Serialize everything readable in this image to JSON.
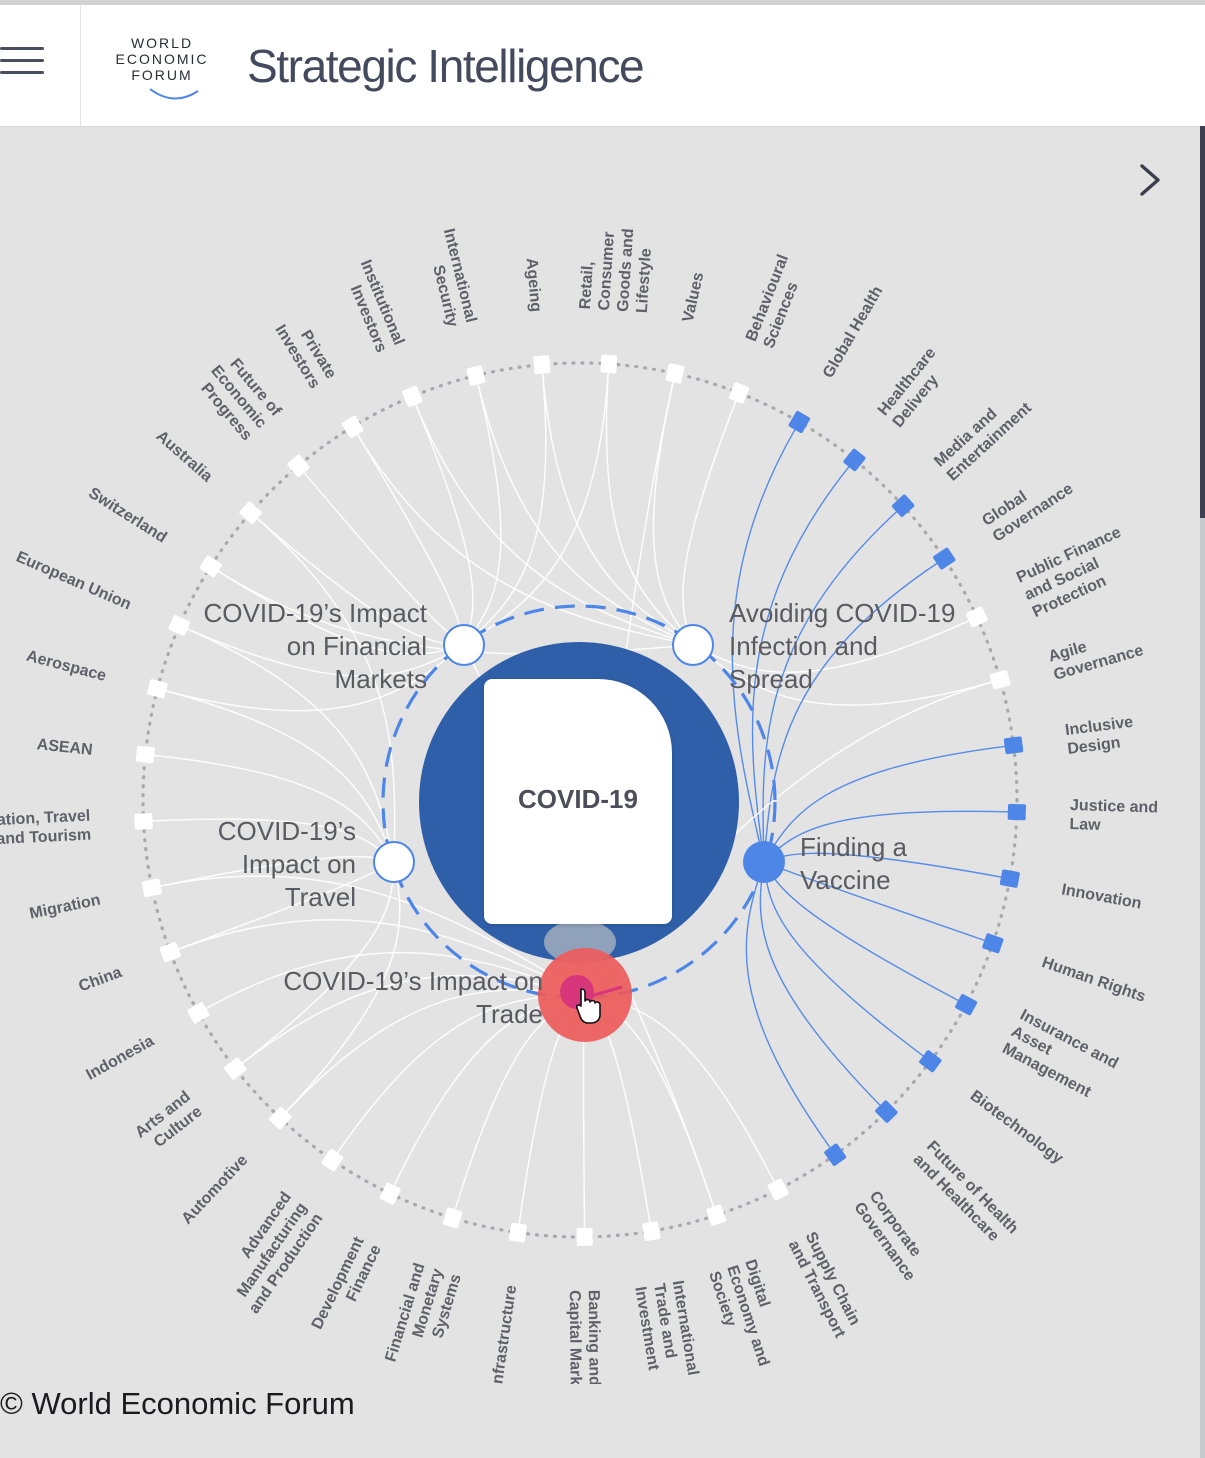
{
  "header": {
    "logo_lines": [
      "WORLD",
      "ECONOMIC",
      "FORUM"
    ],
    "app_title": "Strategic Intelligence",
    "menu_icon": "hamburger-menu-icon",
    "expand_icon": "chevron-right-icon"
  },
  "core": {
    "label": "COVID-19"
  },
  "sub_topics": [
    {
      "id": "financial",
      "lines": [
        "COVID-19’s Impact",
        "on Financial",
        "Markets"
      ],
      "align": "right",
      "highlight": false
    },
    {
      "id": "avoiding",
      "lines": [
        "Avoiding COVID-19",
        "Infection and",
        "Spread"
      ],
      "align": "left",
      "highlight": false
    },
    {
      "id": "travel",
      "lines": [
        "COVID-19’s",
        "Impact on",
        "Travel"
      ],
      "align": "right",
      "highlight": false
    },
    {
      "id": "vaccine",
      "lines": [
        "Finding a",
        "Vaccine"
      ],
      "align": "left",
      "highlight": true
    },
    {
      "id": "trade",
      "lines": [
        "COVID-19’s Impact on",
        "Trade"
      ],
      "align": "right",
      "highlight": false,
      "hovered": true
    }
  ],
  "ring_topics": [
    {
      "lines": [
        "Ageing"
      ],
      "highlight": false
    },
    {
      "lines": [
        "Retail,",
        "Consumer",
        "Goods and",
        "Lifestyle"
      ],
      "highlight": false
    },
    {
      "lines": [
        "Values"
      ],
      "highlight": false
    },
    {
      "lines": [
        "Behavioural",
        "Sciences"
      ],
      "highlight": false
    },
    {
      "lines": [
        "Global Health"
      ],
      "highlight": true
    },
    {
      "lines": [
        "Healthcare",
        "Delivery"
      ],
      "highlight": true
    },
    {
      "lines": [
        "Media and",
        "Entertainment"
      ],
      "highlight": true
    },
    {
      "lines": [
        "Global",
        "Governance"
      ],
      "highlight": true
    },
    {
      "lines": [
        "Public Finance",
        "and Social",
        "Protection"
      ],
      "highlight": false
    },
    {
      "lines": [
        "Agile",
        "Governance"
      ],
      "highlight": false
    },
    {
      "lines": [
        "Inclusive",
        "Design"
      ],
      "highlight": true
    },
    {
      "lines": [
        "Justice and",
        "Law"
      ],
      "highlight": true
    },
    {
      "lines": [
        "Innovation"
      ],
      "highlight": true
    },
    {
      "lines": [
        "Human Rights"
      ],
      "highlight": true
    },
    {
      "lines": [
        "Insurance and",
        "Asset",
        "Management"
      ],
      "highlight": true
    },
    {
      "lines": [
        "Biotechnology"
      ],
      "highlight": true
    },
    {
      "lines": [
        "Future of Health",
        "and Healthcare"
      ],
      "highlight": true
    },
    {
      "lines": [
        "Corporate",
        "Governance"
      ],
      "highlight": true
    },
    {
      "lines": [
        "Supply Chain",
        "and Transport"
      ],
      "highlight": false
    },
    {
      "lines": [
        "Digital",
        "Economy and",
        "Society"
      ],
      "highlight": false
    },
    {
      "lines": [
        "International",
        "Trade and",
        "Investment"
      ],
      "highlight": false
    },
    {
      "lines": [
        "Banking and",
        "Capital Markets"
      ],
      "highlight": false
    },
    {
      "lines": [
        "Infrastructure"
      ],
      "highlight": false
    },
    {
      "lines": [
        "Financial and",
        "Monetary",
        "Systems"
      ],
      "highlight": false
    },
    {
      "lines": [
        "Development",
        "Finance"
      ],
      "highlight": false
    },
    {
      "lines": [
        "Advanced",
        "Manufacturing",
        "and Production"
      ],
      "highlight": false
    },
    {
      "lines": [
        "Automotive"
      ],
      "highlight": false
    },
    {
      "lines": [
        "Arts and",
        "Culture"
      ],
      "highlight": false
    },
    {
      "lines": [
        "Indonesia"
      ],
      "highlight": false
    },
    {
      "lines": [
        "China"
      ],
      "highlight": false
    },
    {
      "lines": [
        "Migration"
      ],
      "highlight": false
    },
    {
      "lines": [
        "Aviation, Travel",
        "and Tourism"
      ],
      "highlight": false
    },
    {
      "lines": [
        "ASEAN"
      ],
      "highlight": false
    },
    {
      "lines": [
        "Aerospace"
      ],
      "highlight": false
    },
    {
      "lines": [
        "European Union"
      ],
      "highlight": false
    },
    {
      "lines": [
        "Switzerland"
      ],
      "highlight": false
    },
    {
      "lines": [
        "Australia"
      ],
      "highlight": false
    },
    {
      "lines": [
        "Future of",
        "Economic",
        "Progress"
      ],
      "highlight": false
    },
    {
      "lines": [
        "Private",
        "Investors"
      ],
      "highlight": false
    },
    {
      "lines": [
        "Institutional",
        "Investors"
      ],
      "highlight": false
    },
    {
      "lines": [
        "International",
        "Security"
      ],
      "highlight": false
    }
  ],
  "links": {
    "financial": [
      0,
      1,
      36,
      37,
      38,
      39,
      40,
      33,
      34,
      35,
      19
    ],
    "avoiding": [
      1,
      2,
      3,
      8,
      9,
      38,
      39,
      40,
      0,
      35
    ],
    "travel": [
      29,
      30,
      31,
      32,
      33,
      34,
      36,
      26,
      27
    ],
    "vaccine": [
      4,
      5,
      6,
      7,
      10,
      11,
      12,
      13,
      14,
      15,
      16,
      17
    ],
    "trade": [
      18,
      19,
      20,
      21,
      22,
      23,
      24,
      25,
      26,
      27,
      28,
      29,
      30,
      2,
      9
    ]
  },
  "colors": {
    "background": "#e3e3e4",
    "accent_blue": "#4e86e8",
    "core_blue": "#2f5fa8",
    "hover_red": "#ee5b5b",
    "link_white": "#ffffff",
    "node_white": "#ffffff"
  },
  "footer": {
    "copyright": "© World Economic Forum"
  }
}
